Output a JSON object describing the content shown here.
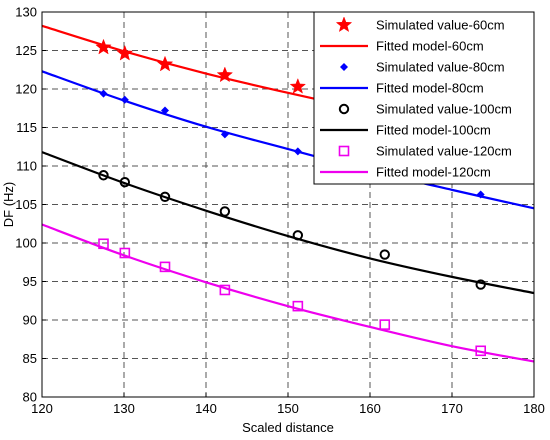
{
  "chart_data": {
    "type": "line",
    "title": "",
    "xlabel": "Scaled distance",
    "ylabel": "DF (Hz)",
    "xlim": [
      120,
      180
    ],
    "ylim": [
      80,
      130
    ],
    "xticks": [
      120,
      130,
      140,
      150,
      160,
      170,
      180
    ],
    "yticks": [
      80,
      85,
      90,
      95,
      100,
      105,
      110,
      115,
      120,
      125,
      130
    ],
    "grid": true,
    "legend_position": "top-right",
    "series": [
      {
        "name": "Simulated value-60cm",
        "kind": "scatter",
        "marker": "star",
        "color": "#ff0000",
        "x": [
          127.5,
          130.1,
          135.0,
          142.3,
          151.2
        ],
        "y": [
          125.4,
          124.6,
          123.2,
          121.8,
          120.3
        ]
      },
      {
        "name": "Fitted model-60cm",
        "kind": "line",
        "color": "#ff0000",
        "x": [
          120,
          130,
          140,
          150,
          160,
          170,
          180
        ],
        "y": [
          128.2,
          124.9,
          122.0,
          119.5,
          117.2,
          115.2,
          113.4
        ]
      },
      {
        "name": "Simulated value-80cm",
        "kind": "scatter",
        "marker": "diamond",
        "color": "#0000ff",
        "x": [
          127.5,
          130.1,
          135.0,
          142.3,
          151.2,
          173.5
        ],
        "y": [
          119.4,
          118.6,
          117.2,
          114.1,
          111.9,
          106.3
        ]
      },
      {
        "name": "Fitted model-80cm",
        "kind": "line",
        "color": "#0000ff",
        "x": [
          120,
          130,
          140,
          150,
          160,
          170,
          180
        ],
        "y": [
          122.3,
          118.5,
          115.1,
          112.2,
          109.4,
          106.9,
          104.5
        ]
      },
      {
        "name": "Simulated value-100cm",
        "kind": "scatter",
        "marker": "circle",
        "color": "#000000",
        "x": [
          127.5,
          130.1,
          135.0,
          142.3,
          151.2,
          161.8,
          173.5
        ],
        "y": [
          108.8,
          107.9,
          106.0,
          104.1,
          101.0,
          98.5,
          94.6
        ]
      },
      {
        "name": "Fitted model-100cm",
        "kind": "line",
        "color": "#000000",
        "x": [
          120,
          130,
          140,
          150,
          160,
          170,
          180
        ],
        "y": [
          111.8,
          107.8,
          104.2,
          100.9,
          98.0,
          95.6,
          93.5
        ]
      },
      {
        "name": "Simulated value-120cm",
        "kind": "scatter",
        "marker": "square",
        "color": "#ee00ee",
        "x": [
          127.5,
          130.1,
          135.0,
          142.3,
          151.2,
          161.8,
          173.5
        ],
        "y": [
          99.9,
          98.7,
          96.9,
          93.9,
          91.8,
          89.4,
          86.0
        ]
      },
      {
        "name": "Fitted model-120cm",
        "kind": "line",
        "color": "#ee00ee",
        "x": [
          120,
          130,
          140,
          150,
          160,
          170,
          180
        ],
        "y": [
          102.4,
          98.4,
          94.9,
          91.8,
          89.1,
          86.6,
          84.6
        ]
      }
    ]
  }
}
